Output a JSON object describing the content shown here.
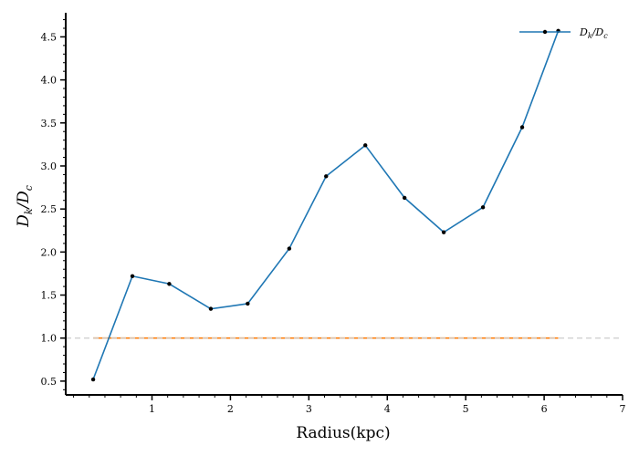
{
  "chart_data": {
    "type": "line",
    "xlabel": "Radius(kpc)",
    "ylabel": "D_k/D_c",
    "xlim": [
      -0.1,
      7.0
    ],
    "ylim": [
      0.34,
      4.78
    ],
    "xticks": [
      1,
      2,
      3,
      4,
      5,
      6,
      7
    ],
    "yticks": [
      0.5,
      1.0,
      1.5,
      2.0,
      2.5,
      3.0,
      3.5,
      4.0,
      4.5
    ],
    "x_minor_step": 0.2,
    "y_minor_step": 0.1,
    "grid": false,
    "legend_position": "top-right",
    "series": [
      {
        "name": "Dk/Dc",
        "color": "#1f77b4",
        "marker": "dot",
        "x": [
          0.25,
          0.75,
          1.22,
          1.75,
          2.22,
          2.75,
          3.22,
          3.72,
          4.22,
          4.72,
          5.22,
          5.72,
          6.18
        ],
        "y": [
          0.52,
          1.72,
          1.63,
          1.34,
          1.4,
          2.04,
          2.88,
          3.24,
          2.63,
          2.23,
          2.52,
          3.45,
          4.57
        ]
      }
    ],
    "reference_lines": [
      {
        "kind": "constant-series",
        "y": 1.0,
        "x_from": 0.25,
        "x_to": 6.18,
        "color": "#ff7f0e"
      },
      {
        "kind": "dashed-horizontal",
        "y": 1.0,
        "color": "#cccccc"
      }
    ]
  }
}
